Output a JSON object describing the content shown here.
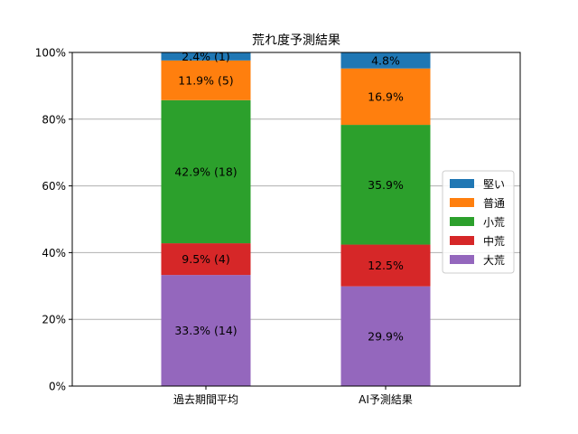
{
  "chart_data": {
    "type": "bar",
    "stacked": true,
    "title": "荒れ度予測結果",
    "xlabel": "",
    "ylabel": "",
    "categories": [
      "過去期間平均",
      "AI予測結果"
    ],
    "y_tick_labels": [
      "0%",
      "20%",
      "40%",
      "60%",
      "80%",
      "100%"
    ],
    "ylim": [
      0,
      100
    ],
    "grid": "horizontal",
    "legend_position": "right",
    "series": [
      {
        "name": "大荒",
        "color": "#9467bd",
        "values": [
          33.3,
          29.9
        ],
        "labels": [
          "33.3% (14)",
          "29.9%"
        ]
      },
      {
        "name": "中荒",
        "color": "#d62728",
        "values": [
          9.5,
          12.5
        ],
        "labels": [
          "9.5% (4)",
          "12.5%"
        ]
      },
      {
        "name": "小荒",
        "color": "#2ca02c",
        "values": [
          42.9,
          35.9
        ],
        "labels": [
          "42.9% (18)",
          "35.9%"
        ]
      },
      {
        "name": "普通",
        "color": "#ff7f0e",
        "values": [
          11.9,
          16.9
        ],
        "labels": [
          "11.9% (5)",
          "16.9%"
        ]
      },
      {
        "name": "堅い",
        "color": "#1f77b4",
        "values": [
          2.4,
          4.8
        ],
        "labels": [
          "2.4% (1)",
          "4.8%"
        ]
      }
    ],
    "legend_order": [
      "堅い",
      "普通",
      "小荒",
      "中荒",
      "大荒"
    ]
  }
}
